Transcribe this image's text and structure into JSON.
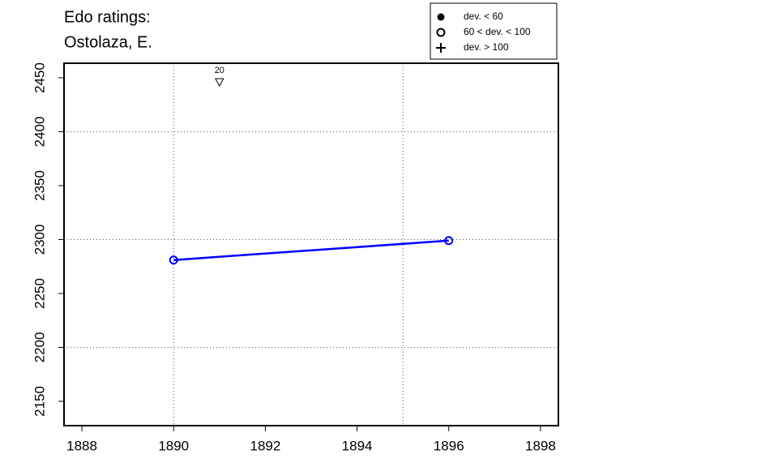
{
  "chart_data": {
    "type": "line",
    "title": [
      "Edo ratings:",
      "Ostolaza, E."
    ],
    "series": [
      {
        "color": "#0000ff",
        "marker": "open-circle",
        "x": [
          1890,
          1896
        ],
        "values": [
          2281,
          2299
        ]
      }
    ],
    "xlim": [
      1887.61,
      1898.39
    ],
    "ylim": [
      2127.4,
      2463.5
    ],
    "xticks": [
      1888,
      1890,
      1892,
      1894,
      1896,
      1898
    ],
    "yticks": [
      2150,
      2200,
      2250,
      2300,
      2350,
      2400,
      2450
    ],
    "xgrid": [
      1890,
      1895
    ],
    "ygrid": [
      2200,
      2300,
      2400
    ],
    "annotations": [
      {
        "x": 1891,
        "label": "20"
      }
    ],
    "legend": {
      "position": "top-right",
      "entries": [
        "dev. < 60",
        "60 < dev. < 100",
        "dev. > 100"
      ],
      "markers": [
        "filled-circle",
        "open-circle",
        "plus"
      ]
    }
  }
}
